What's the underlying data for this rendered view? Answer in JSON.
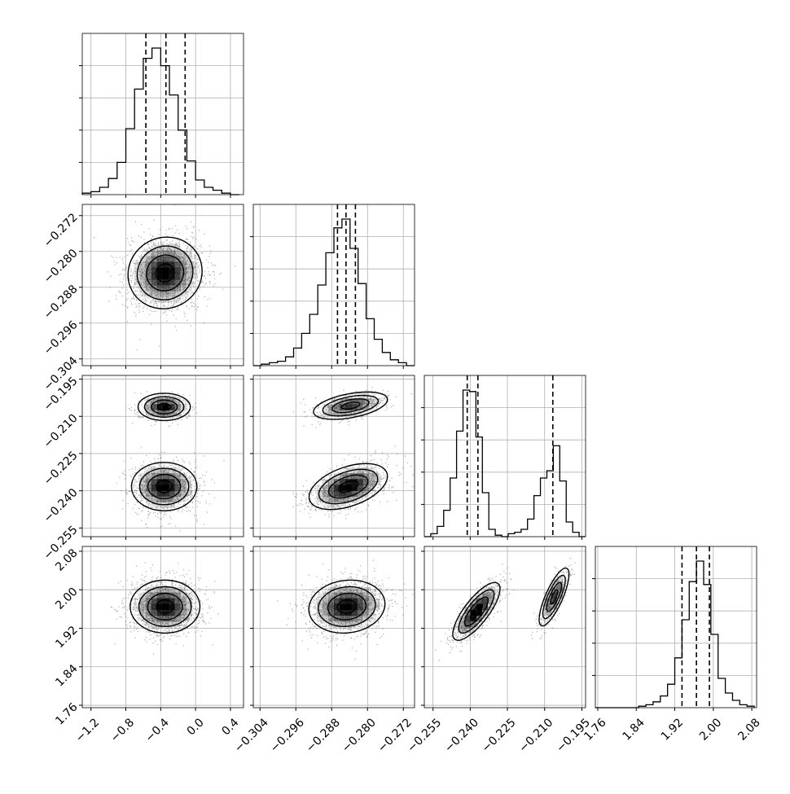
{
  "chart_data": {
    "type": "corner",
    "parameters": [
      {
        "index": 0,
        "range": [
          -1.3,
          0.55
        ],
        "ticks": [
          -1.2,
          -0.8,
          -0.4,
          0.0,
          0.4
        ],
        "tick_labels": [
          "−1.2",
          "−0.8",
          "−0.4",
          "0.0",
          "0.4"
        ],
        "quantiles": [
          -0.57,
          -0.34,
          -0.12
        ]
      },
      {
        "index": 1,
        "range": [
          -0.3055,
          -0.2695
        ],
        "ticks": [
          -0.304,
          -0.296,
          -0.288,
          -0.28,
          -0.272
        ],
        "tick_labels": [
          "−0.304",
          "−0.296",
          "−0.288",
          "−0.280",
          "−0.272"
        ],
        "quantiles": [
          -0.2867,
          -0.2848,
          -0.2827
        ]
      },
      {
        "index": 2,
        "range": [
          -0.2585,
          -0.1935
        ],
        "ticks": [
          -0.255,
          -0.24,
          -0.225,
          -0.21,
          -0.195
        ],
        "tick_labels": [
          "−0.255",
          "−0.240",
          "−0.225",
          "−0.210",
          "−0.195"
        ],
        "quantiles": [
          -0.2412,
          -0.2369,
          -0.2067
        ]
      },
      {
        "index": 3,
        "range": [
          1.755,
          2.09
        ],
        "ticks": [
          1.76,
          1.84,
          1.92,
          2.0,
          2.08
        ],
        "tick_labels": [
          "1.76",
          "1.84",
          "1.92",
          "2.00",
          "2.08"
        ],
        "quantiles": [
          1.935,
          1.965,
          1.992
        ]
      }
    ],
    "histograms": [
      {
        "param": 0,
        "bin_edges": [
          -1.3,
          -1.2,
          -1.1,
          -1.0,
          -0.9,
          -0.8,
          -0.7,
          -0.6,
          -0.5,
          -0.4,
          -0.3,
          -0.2,
          -0.1,
          0.0,
          0.1,
          0.2,
          0.3,
          0.4,
          0.5
        ],
        "counts": [
          1,
          2,
          5,
          11,
          22,
          45,
          72,
          93,
          100,
          88,
          68,
          44,
          23,
          10,
          5,
          3,
          1,
          0
        ]
      },
      {
        "param": 1,
        "bin_edges": [
          -0.3055,
          -0.3037,
          -0.3019,
          -0.3001,
          -0.2983,
          -0.2965,
          -0.2947,
          -0.2929,
          -0.2911,
          -0.2893,
          -0.2875,
          -0.2857,
          -0.2839,
          -0.2821,
          -0.2803,
          -0.2785,
          -0.2767,
          -0.2749,
          -0.2731,
          -0.2713,
          -0.2695
        ],
        "counts": [
          0,
          1,
          2,
          3,
          6,
          12,
          22,
          35,
          55,
          77,
          94,
          100,
          80,
          56,
          32,
          18,
          9,
          4,
          2,
          0
        ]
      },
      {
        "param": 2,
        "bin_edges": [
          -0.2585,
          -0.2559,
          -0.2533,
          -0.2507,
          -0.2481,
          -0.2455,
          -0.2429,
          -0.2403,
          -0.2377,
          -0.2351,
          -0.2325,
          -0.2299,
          -0.2273,
          -0.2247,
          -0.2221,
          -0.2195,
          -0.2169,
          -0.2143,
          -0.2117,
          -0.2091,
          -0.2065,
          -0.2039,
          -0.2013,
          -0.1987,
          -0.1961,
          -0.1935
        ],
        "counts": [
          0,
          2,
          7,
          18,
          40,
          72,
          100,
          99,
          68,
          30,
          5,
          1,
          0,
          2,
          3,
          5,
          12,
          28,
          40,
          45,
          62,
          38,
          10,
          3,
          0
        ]
      },
      {
        "param": 3,
        "bin_edges": [
          1.755,
          1.77,
          1.785,
          1.8,
          1.815,
          1.83,
          1.845,
          1.86,
          1.875,
          1.89,
          1.905,
          1.92,
          1.935,
          1.95,
          1.965,
          1.98,
          1.995,
          2.01,
          2.025,
          2.04,
          2.055,
          2.07,
          2.085
        ],
        "counts": [
          0,
          0,
          0,
          0,
          0,
          0,
          1,
          2,
          4,
          8,
          16,
          34,
          60,
          86,
          100,
          84,
          50,
          20,
          10,
          5,
          2,
          1
        ]
      }
    ],
    "densities_2d": [
      {
        "x_param": 0,
        "y_param": 1,
        "modes": [
          {
            "center": [
              -0.35,
              -0.2848
            ],
            "sigma": [
              0.17,
              0.0032
            ],
            "rho": 0.05,
            "weight": 1.0
          }
        ]
      },
      {
        "x_param": 0,
        "y_param": 2,
        "modes": [
          {
            "center": [
              -0.36,
              -0.2383
            ],
            "sigma": [
              0.15,
              0.0039
            ],
            "rho": 0.0,
            "weight": 0.7
          },
          {
            "center": [
              -0.36,
              -0.2062
            ],
            "sigma": [
              0.12,
              0.0022
            ],
            "rho": 0.0,
            "weight": 0.3
          }
        ]
      },
      {
        "x_param": 0,
        "y_param": 3,
        "modes": [
          {
            "center": [
              -0.35,
              1.965
            ],
            "sigma": [
              0.16,
              0.022
            ],
            "rho": 0.0,
            "weight": 1.0
          }
        ]
      },
      {
        "x_param": 1,
        "y_param": 2,
        "modes": [
          {
            "center": [
              -0.2843,
              -0.2383
            ],
            "sigma": [
              0.0035,
              0.0037
            ],
            "rho": 0.45,
            "weight": 0.7
          },
          {
            "center": [
              -0.2838,
              -0.2057
            ],
            "sigma": [
              0.0033,
              0.0022
            ],
            "rho": 0.45,
            "weight": 0.3
          }
        ]
      },
      {
        "x_param": 1,
        "y_param": 3,
        "modes": [
          {
            "center": [
              -0.2846,
              1.965
            ],
            "sigma": [
              0.0034,
              0.022
            ],
            "rho": 0.1,
            "weight": 1.0
          }
        ]
      },
      {
        "x_param": 2,
        "y_param": 3,
        "modes": [
          {
            "center": [
              -0.2375,
              1.955
            ],
            "sigma": [
              0.0038,
              0.024
            ],
            "rho": 0.78,
            "weight": 0.7
          },
          {
            "center": [
              -0.2062,
              1.985
            ],
            "sigma": [
              0.0024,
              0.024
            ],
            "rho": 0.78,
            "weight": 0.3
          }
        ]
      }
    ],
    "contour_levels_sigma": [
      0.5,
      1.0,
      1.5,
      2.0
    ],
    "quantile_line_style": "dashed",
    "grid": true,
    "colors": {
      "line": "#000000",
      "grid": "#b0b0b0",
      "points": "#000000",
      "density": "#000000"
    }
  }
}
